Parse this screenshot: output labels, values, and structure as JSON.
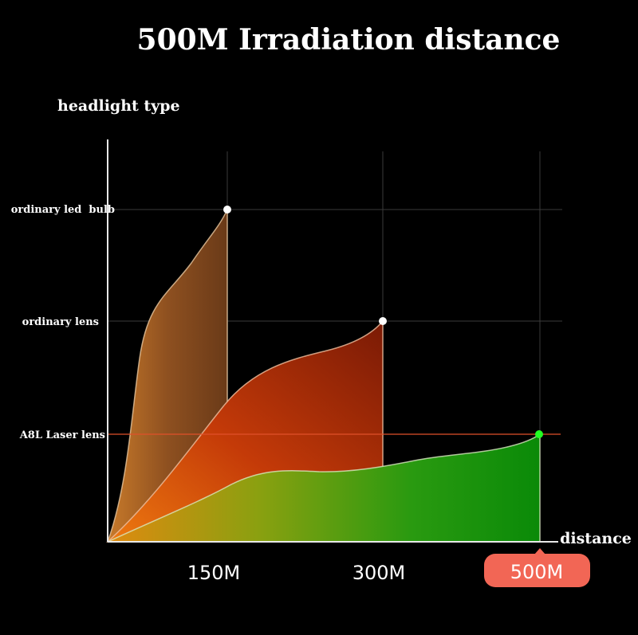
{
  "chart_data": {
    "type": "area",
    "title": "500M Irradiation distance",
    "ylabel": "headlight type",
    "xlabel": "distance",
    "x_ticks": [
      "150M",
      "300M",
      "500M"
    ],
    "y_categories": [
      "A8L Laser lens",
      "ordinary lens",
      "ordinary led  bulb"
    ],
    "highlight_tick": "500M",
    "series": [
      {
        "category": "ordinary led  bulb",
        "max_distance": 150,
        "color": "#8a4a1e",
        "marker_color": "#ffffff"
      },
      {
        "category": "ordinary lens",
        "max_distance": 300,
        "color": "#b02a0a",
        "marker_color": "#ffffff"
      },
      {
        "category": "A8L Laser lens",
        "max_distance": 500,
        "color": "#1a9a10",
        "marker_color": "#22ff22"
      }
    ],
    "colors": {
      "background": "#000000",
      "highlight_badge": "#f26655",
      "laser_line": "#e0502a",
      "grid": "#3a3a3a"
    }
  }
}
